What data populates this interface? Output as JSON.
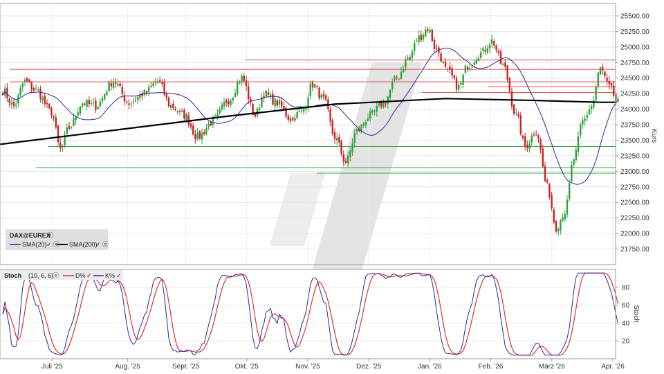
{
  "chart_data": [
    {
      "type": "candlestick",
      "instrument": "DAX@EUREX",
      "ylabel": "Kurs",
      "ylim": [
        21500,
        25700
      ],
      "yticks": [
        21750,
        22000,
        22250,
        22500,
        22750,
        23000,
        23250,
        23500,
        23750,
        24000,
        24250,
        24500,
        24750,
        25000,
        25250,
        25500
      ],
      "ytick_labels": [
        "21750.00",
        "22000.00",
        "22250.00",
        "22500.00",
        "22750.00",
        "23000.00",
        "23250.00",
        "23500.00",
        "23750.00",
        "24000.00",
        "24250.00",
        "24500.00",
        "24750.00",
        "25000.00",
        "25250.00",
        "25500.00"
      ],
      "x_months": [
        "Juli '25",
        "Aug. '25",
        "Sept. '25",
        "Okt. '25",
        "Nov. '25",
        "Dez. '25",
        "Jan. '26",
        "Feb. '26",
        "März '26",
        "Apr. '26"
      ],
      "close_anchors": [
        [
          0,
          24300
        ],
        [
          5,
          24050
        ],
        [
          10,
          24450
        ],
        [
          15,
          24300
        ],
        [
          22,
          23950
        ],
        [
          26,
          23350
        ],
        [
          30,
          23700
        ],
        [
          36,
          24100
        ],
        [
          42,
          24050
        ],
        [
          50,
          24450
        ],
        [
          57,
          24100
        ],
        [
          64,
          24250
        ],
        [
          70,
          24450
        ],
        [
          76,
          24050
        ],
        [
          82,
          23900
        ],
        [
          88,
          23550
        ],
        [
          95,
          23800
        ],
        [
          102,
          24150
        ],
        [
          108,
          24500
        ],
        [
          114,
          23900
        ],
        [
          118,
          24250
        ],
        [
          124,
          24100
        ],
        [
          130,
          23850
        ],
        [
          135,
          23950
        ],
        [
          140,
          24400
        ],
        [
          145,
          24150
        ],
        [
          150,
          23550
        ],
        [
          155,
          23150
        ],
        [
          160,
          23650
        ],
        [
          166,
          23900
        ],
        [
          172,
          24100
        ],
        [
          178,
          24500
        ],
        [
          183,
          24800
        ],
        [
          188,
          25150
        ],
        [
          192,
          25300
        ],
        [
          196,
          24950
        ],
        [
          201,
          24600
        ],
        [
          206,
          24350
        ],
        [
          210,
          24700
        ],
        [
          216,
          24900
        ],
        [
          221,
          25100
        ],
        [
          226,
          24700
        ],
        [
          232,
          23900
        ],
        [
          236,
          23400
        ],
        [
          241,
          23650
        ],
        [
          246,
          22750
        ],
        [
          250,
          22100
        ],
        [
          254,
          22350
        ],
        [
          258,
          23200
        ],
        [
          262,
          23800
        ],
        [
          266,
          24050
        ],
        [
          270,
          24650
        ],
        [
          274,
          24350
        ],
        [
          278,
          24100
        ]
      ],
      "series": [
        {
          "name": "SMA(20)",
          "color": "#2b2b99"
        },
        {
          "name": "SMA(200)",
          "color": "#000000"
        }
      ],
      "sma200": [
        [
          -200,
          22150
        ],
        [
          -150,
          22580
        ],
        [
          -100,
          22940
        ],
        [
          -50,
          23220
        ],
        [
          0,
          23440
        ],
        [
          50,
          23660
        ],
        [
          100,
          23880
        ],
        [
          150,
          24080
        ],
        [
          200,
          24170
        ],
        [
          240,
          24140
        ],
        [
          270,
          24110
        ],
        [
          280,
          24110
        ]
      ],
      "resistance_lines": [
        24790,
        24640,
        24440,
        24360,
        24270
      ],
      "support_lines": [
        23400,
        23060,
        22970
      ],
      "legend_placement": "bottom-left"
    },
    {
      "type": "line",
      "title": "Stoch",
      "params": "(10, 6, 6)",
      "ylabel": "Stoch",
      "ylim": [
        0,
        100
      ],
      "yticks": [
        20,
        40,
        60,
        80
      ],
      "series": [
        {
          "name": "D%",
          "color": "#e03030"
        },
        {
          "name": "K%",
          "color": "#2b2b99"
        }
      ]
    }
  ]
}
